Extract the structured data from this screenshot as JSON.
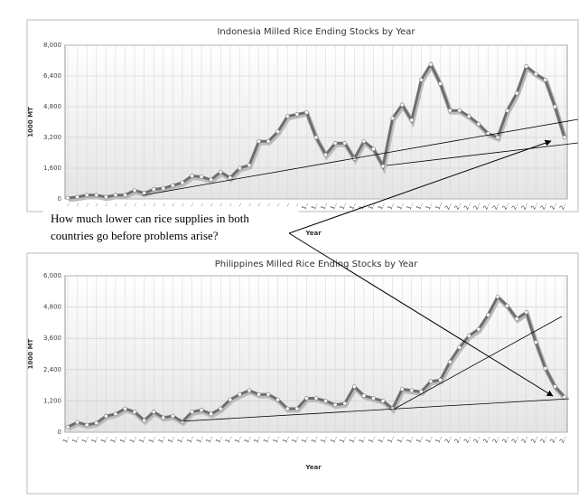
{
  "chart_data": [
    {
      "type": "line",
      "title": "Indonesia Milled Rice Ending Stocks by Year",
      "x_label": "Year",
      "y_label": "1000 MT",
      "categories": [
        "1..",
        "1..",
        "1..",
        "1..",
        "1..",
        "1..",
        "1..",
        "1..",
        "1..",
        "1..",
        "1..",
        "1..",
        "1..",
        "1..",
        "1..",
        "1..",
        "1..",
        "1..",
        "1..",
        "1..",
        "1..",
        "1..",
        "1..",
        "1..",
        "1..",
        "1..",
        "1..",
        "1..",
        "1..",
        "1..",
        "1..",
        "1..",
        "1..",
        "1..",
        "1..",
        "1..",
        "1..",
        "1..",
        "1..",
        "1..",
        "2..",
        "2..",
        "2..",
        "2..",
        "2..",
        "2..",
        "2..",
        "2..",
        "2..",
        "2..",
        "2..",
        "2..",
        "2.."
      ],
      "values": [
        50,
        100,
        200,
        200,
        100,
        200,
        200,
        450,
        300,
        500,
        550,
        700,
        850,
        1200,
        1150,
        1000,
        1400,
        1100,
        1600,
        1750,
        3000,
        3000,
        3500,
        4300,
        4400,
        4500,
        3200,
        2300,
        2900,
        2900,
        2100,
        3000,
        2600,
        1700,
        4200,
        4900,
        4100,
        6200,
        7000,
        6000,
        4600,
        4600,
        4300,
        3900,
        3400,
        3200,
        4600,
        5500,
        6900,
        6500,
        6200,
        4800,
        3200
      ],
      "color": "#6e6e6e",
      "ylim": [
        0,
        8000
      ],
      "yticks": [
        0,
        {
          "value": 1600,
          "label": "1,600"
        },
        {
          "value": 3200,
          "label": "3,200"
        },
        {
          "value": 4800,
          "label": "4,800"
        },
        {
          "value": 6400,
          "label": "6,400"
        },
        {
          "value": 8000,
          "label": "8,000"
        }
      ],
      "grid": true
    },
    {
      "type": "line",
      "title": "Philippines Milled Rice Ending Stocks by Year",
      "x_label": "Year",
      "y_label": "1000 MT",
      "categories": [
        "1..",
        "1..",
        "1..",
        "1..",
        "1..",
        "1..",
        "1..",
        "1..",
        "1..",
        "1..",
        "1..",
        "1..",
        "1..",
        "1..",
        "1..",
        "1..",
        "1..",
        "1..",
        "1..",
        "1..",
        "1..",
        "1..",
        "1..",
        "1..",
        "1..",
        "1..",
        "1..",
        "1..",
        "1..",
        "1..",
        "1..",
        "1..",
        "1..",
        "1..",
        "1..",
        "1..",
        "1..",
        "1..",
        "1..",
        "1..",
        "2..",
        "2..",
        "2..",
        "2..",
        "2..",
        "2..",
        "2..",
        "2..",
        "2..",
        "2..",
        "2..",
        "2..",
        "2.."
      ],
      "values": [
        200,
        380,
        280,
        350,
        620,
        700,
        900,
        780,
        450,
        780,
        560,
        620,
        400,
        780,
        850,
        700,
        900,
        1250,
        1450,
        1600,
        1450,
        1450,
        1250,
        900,
        900,
        1300,
        1300,
        1200,
        1050,
        1100,
        1750,
        1400,
        1300,
        1200,
        900,
        1650,
        1600,
        1550,
        1950,
        2000,
        2700,
        3250,
        3700,
        3950,
        4500,
        5200,
        4850,
        4350,
        4600,
        3450,
        2450,
        1750,
        1350
      ],
      "color": "#6e6e6e",
      "ylim": [
        0,
        6000
      ],
      "yticks": [
        0,
        {
          "value": 1200,
          "label": "1,200"
        },
        {
          "value": 2400,
          "label": "2,400"
        },
        {
          "value": 3600,
          "label": "3,600"
        },
        {
          "value": 4800,
          "label": "4,800"
        },
        {
          "value": 6000,
          "label": "6,000"
        }
      ],
      "grid": true
    }
  ],
  "annotation": {
    "lines": [
      "How much lower can rice supplies in both",
      "countries go before problems arise?"
    ]
  }
}
